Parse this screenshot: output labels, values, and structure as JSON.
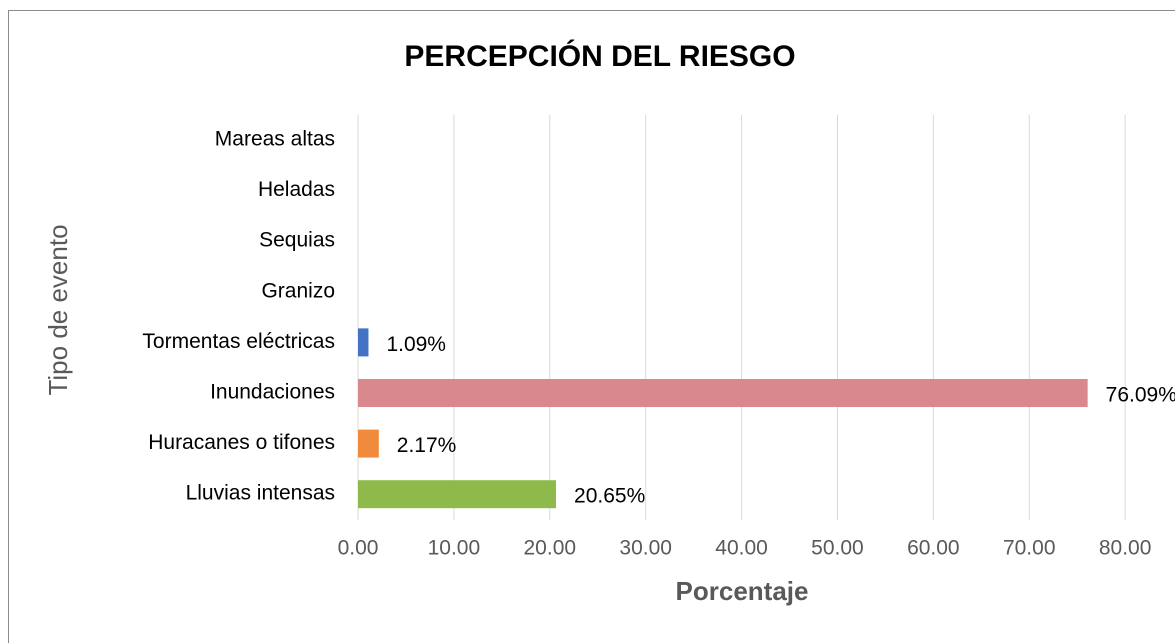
{
  "chart_data": {
    "type": "hbar",
    "title": "PERCEPCIÓN DEL RIESGO",
    "x_label": "Porcentaje",
    "y_label": "Tipo de evento",
    "categories": [
      "Mareas altas",
      "Heladas",
      "Sequias",
      "Granizo",
      "Tormentas eléctricas",
      "Inundaciones",
      "Huracanes o tifones",
      "Lluvias intensas"
    ],
    "values": [
      0,
      0,
      0,
      0,
      1.09,
      76.09,
      2.17,
      20.65
    ],
    "value_labels": [
      null,
      null,
      null,
      null,
      "1.09%",
      "76.09%",
      "2.17%",
      "20.65%"
    ],
    "colors": [
      null,
      null,
      null,
      null,
      "#4472c4",
      "#d9888d",
      "#f08a3c",
      "#8dba4a"
    ],
    "xlim": [
      0,
      85.2
    ],
    "xticks": [
      {
        "value": 0,
        "label": "0.00"
      },
      {
        "value": 10,
        "label": "10.00"
      },
      {
        "value": 20,
        "label": "20.00"
      },
      {
        "value": 30,
        "label": "30.00"
      },
      {
        "value": 40,
        "label": "40.00"
      },
      {
        "value": 50,
        "label": "50.00"
      },
      {
        "value": 60,
        "label": "60.00"
      },
      {
        "value": 70,
        "label": "70.00"
      },
      {
        "value": 80,
        "label": "80.00"
      }
    ],
    "grid": true
  }
}
